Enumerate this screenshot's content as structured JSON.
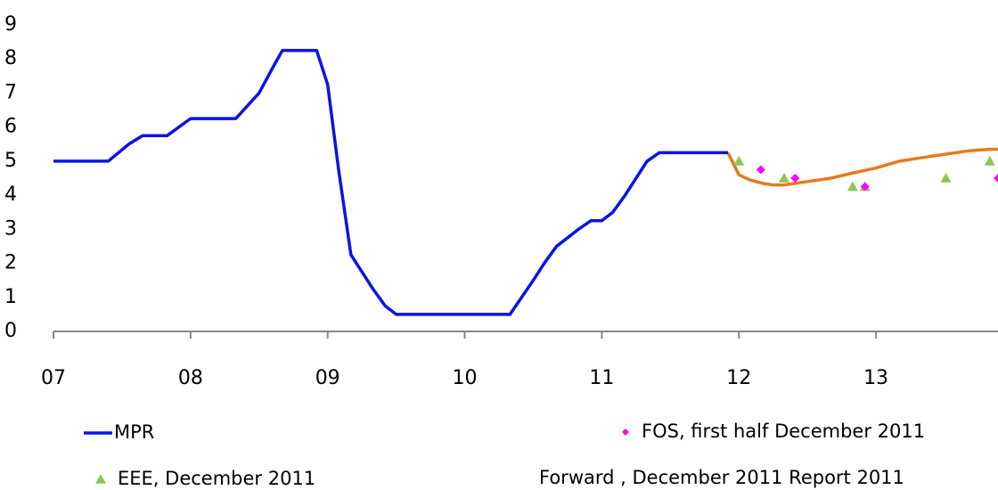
{
  "chart_data": {
    "type": "line",
    "xlim": [
      2007,
      2013.89
    ],
    "ylim": [
      0,
      9
    ],
    "yticks": [
      0,
      1,
      2,
      3,
      4,
      5,
      6,
      7,
      8,
      9
    ],
    "xticks": [
      {
        "value": 2007,
        "label": "07"
      },
      {
        "value": 2008,
        "label": "08"
      },
      {
        "value": 2009,
        "label": "09"
      },
      {
        "value": 2010,
        "label": "10"
      },
      {
        "value": 2011,
        "label": "11"
      },
      {
        "value": 2012,
        "label": "12"
      },
      {
        "value": 2013,
        "label": "13"
      }
    ],
    "series": [
      {
        "name": "MPR",
        "color": "#0a14e6",
        "marker": "line",
        "x": [
          2007.0,
          2007.4,
          2007.55,
          2007.65,
          2007.83,
          2008.0,
          2008.33,
          2008.5,
          2008.6,
          2008.67,
          2008.92,
          2009.0,
          2009.08,
          2009.17,
          2009.25,
          2009.33,
          2009.42,
          2009.5,
          2010.33,
          2010.5,
          2010.58,
          2010.67,
          2010.83,
          2010.92,
          2011.0,
          2011.08,
          2011.17,
          2011.25,
          2011.33,
          2011.42,
          2011.92
        ],
        "values": [
          5,
          5,
          5.5,
          5.75,
          5.75,
          6.25,
          6.25,
          7,
          7.75,
          8.25,
          8.25,
          7.25,
          4.75,
          2.25,
          1.75,
          1.25,
          0.75,
          0.5,
          0.5,
          1.5,
          2,
          2.5,
          3,
          3.25,
          3.25,
          3.5,
          4,
          4.5,
          5,
          5.25,
          5.25
        ]
      },
      {
        "name": "FOS, first half December 2011",
        "color": "#ff00ff",
        "marker": "diamond",
        "x": [
          2012.16,
          2012.41,
          2012.92,
          2013.89
        ],
        "values": [
          4.75,
          4.5,
          4.25,
          4.5
        ]
      },
      {
        "name": "EEE, December 2011",
        "color": "#8cc850",
        "marker": "triangle",
        "x": [
          2012.0,
          2012.33,
          2012.83,
          2012.92,
          2013.51,
          2013.83
        ],
        "values": [
          5,
          4.5,
          4.25,
          4.25,
          4.5,
          5
        ]
      },
      {
        "name": "Forward , December 2011 Report 2011",
        "color": "#e57a1e",
        "marker": "line-noleg",
        "x": [
          2011.92,
          2012.0,
          2012.08,
          2012.17,
          2012.25,
          2012.33,
          2012.5,
          2012.67,
          2012.83,
          2013.0,
          2013.17,
          2013.33,
          2013.5,
          2013.67,
          2013.83,
          2013.89
        ],
        "values": [
          5.25,
          4.6,
          4.45,
          4.35,
          4.3,
          4.3,
          4.4,
          4.5,
          4.65,
          4.8,
          5.0,
          5.1,
          5.2,
          5.3,
          5.35,
          5.35
        ]
      }
    ]
  }
}
